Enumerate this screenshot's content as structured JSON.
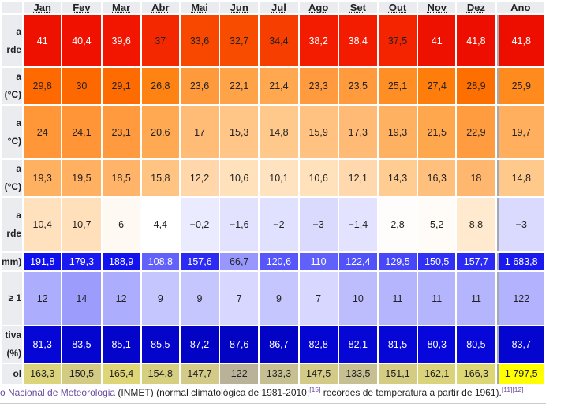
{
  "header": {
    "months": [
      "Jan",
      "Fev",
      "Mar",
      "Abr",
      "Mai",
      "Jun",
      "Jul",
      "Ago",
      "Set",
      "Out",
      "Nov",
      "Dez"
    ],
    "annual": "Ano"
  },
  "rows": [
    {
      "label_lines": [
        "a",
        "rde"
      ],
      "values": [
        "41",
        "40,4",
        "39,6",
        "37",
        "33,6",
        "32,7",
        "34,4",
        "38,2",
        "38,4",
        "37,5",
        "41",
        "41,8"
      ],
      "annual": "41,8",
      "colors": [
        "#ee1100",
        "#f01100",
        "#f21500",
        "#f42800",
        "#f84800",
        "#f84d00",
        "#f63e00",
        "#f31c00",
        "#f31b00",
        "#f42300",
        "#ee1100",
        "#ed0e00"
      ],
      "annual_color": "#ed0e00",
      "text_colors": [
        "#ffffff",
        "#ffffff",
        "#ffffff",
        "#222222",
        "#222222",
        "#222222",
        "#222222",
        "#ffffff",
        "#ffffff",
        "#222222",
        "#ffffff",
        "#ffffff"
      ],
      "annual_text_color": "#ffffff"
    },
    {
      "label_lines": [
        "a",
        "(°C)"
      ],
      "values": [
        "29,8",
        "30",
        "29,1",
        "26,8",
        "23,6",
        "22,1",
        "21,4",
        "23,3",
        "23,5",
        "25,1",
        "27,4",
        "28,9"
      ],
      "annual": "25,9",
      "colors": [
        "#fe6a01",
        "#fe6801",
        "#fe6c01",
        "#ff8312",
        "#ff9a3c",
        "#ffa348",
        "#ffa84f",
        "#ff9b3e",
        "#ff9b3d",
        "#ff8e25",
        "#ff7e0b",
        "#fe6f02"
      ],
      "annual_color": "#ff8a1e",
      "text_colors": [
        "#222222",
        "#222222",
        "#222222",
        "#222222",
        "#222222",
        "#222222",
        "#222222",
        "#222222",
        "#222222",
        "#222222",
        "#222222",
        "#222222"
      ],
      "annual_text_color": "#222222"
    },
    {
      "label_lines": [
        "a",
        "°C)"
      ],
      "values": [
        "24",
        "24,1",
        "23,1",
        "20,6",
        "17",
        "15,3",
        "14,8",
        "15,9",
        "17,3",
        "19,3",
        "21,5",
        "22,9"
      ],
      "annual": "19,7",
      "colors": [
        "#ff9637",
        "#ff9536",
        "#ff9a3e",
        "#ffa953",
        "#ffbc77",
        "#ffc687",
        "#ffc98c",
        "#ffc281",
        "#ffbb75",
        "#ffb162",
        "#ffa74d",
        "#ff9c40"
      ],
      "annual_color": "#ffaf5d",
      "text_colors": [
        "#222222",
        "#222222",
        "#222222",
        "#222222",
        "#222222",
        "#222222",
        "#222222",
        "#222222",
        "#222222",
        "#222222",
        "#222222",
        "#222222"
      ],
      "annual_text_color": "#222222"
    },
    {
      "label_lines": [
        "a",
        "(°C)"
      ],
      "values": [
        "19,3",
        "19,5",
        "18,5",
        "15,8",
        "12,2",
        "10,6",
        "10,1",
        "10,6",
        "12,1",
        "14,3",
        "16,3",
        "18"
      ],
      "annual": "14,8",
      "colors": [
        "#ffb162",
        "#ffb061",
        "#ffb46a",
        "#ffc382",
        "#ffd7ab",
        "#ffe1bc",
        "#ffe3c1",
        "#ffe1bc",
        "#ffd8ad",
        "#ffcc92",
        "#ffc07d",
        "#ffb66e"
      ],
      "annual_color": "#ffc98c",
      "text_colors": [
        "#222222",
        "#222222",
        "#222222",
        "#222222",
        "#222222",
        "#222222",
        "#222222",
        "#222222",
        "#222222",
        "#222222",
        "#222222",
        "#222222"
      ],
      "annual_text_color": "#222222"
    },
    {
      "label_lines": [
        "a",
        "rde"
      ],
      "values": [
        "10,4",
        "10,7",
        "6",
        "4,4",
        "−0,2",
        "−1,6",
        "−2",
        "−3",
        "−1,4",
        "2,8",
        "5,2",
        "8,8"
      ],
      "annual": "−3",
      "colors": [
        "#ffe1bd",
        "#ffe0bb",
        "#fff9f3",
        "#ffffff",
        "#ebebff",
        "#e2e2ff",
        "#e0e0ff",
        "#dadaff",
        "#e3e3ff",
        "#fffdfb",
        "#fffcf8",
        "#ffe9cf"
      ],
      "annual_color": "#dadaff",
      "text_colors": [
        "#222222",
        "#222222",
        "#222222",
        "#222222",
        "#222222",
        "#222222",
        "#222222",
        "#222222",
        "#222222",
        "#222222",
        "#222222",
        "#222222"
      ],
      "annual_text_color": "#222222"
    },
    {
      "label_lines": [
        "mm)"
      ],
      "values": [
        "191,8",
        "179,3",
        "188,9",
        "108,8",
        "157,6",
        "66,7",
        "120,6",
        "110",
        "122,4",
        "129,5",
        "150,5",
        "157,7"
      ],
      "annual": "1 683,8",
      "colors": [
        "#1010ee",
        "#1a1af0",
        "#1212ee",
        "#6262fb",
        "#2b2bf3",
        "#9797fd",
        "#5656fa",
        "#6060fb",
        "#5252f9",
        "#4848f8",
        "#3131f4",
        "#2b2bf3"
      ],
      "annual_color": "#1a1aef",
      "text_colors": [
        "#ffffff",
        "#ffffff",
        "#ffffff",
        "#ffffff",
        "#ffffff",
        "#222222",
        "#ffffff",
        "#ffffff",
        "#ffffff",
        "#ffffff",
        "#ffffff",
        "#ffffff"
      ],
      "annual_text_color": "#ffffff"
    },
    {
      "label_lines": [
        "≥ 1"
      ],
      "values": [
        "12",
        "14",
        "12",
        "9",
        "9",
        "7",
        "9",
        "7",
        "10",
        "11",
        "11",
        "11"
      ],
      "annual": "122",
      "colors": [
        "#adadfe",
        "#9c9cfd",
        "#adadfe",
        "#c6c6ff",
        "#c6c6ff",
        "#d7d7ff",
        "#c6c6ff",
        "#d7d7ff",
        "#bdbdfe",
        "#b5b5fe",
        "#b5b5fe",
        "#b5b5fe"
      ],
      "annual_color": "#b2b2fe",
      "text_colors": [
        "#222222",
        "#222222",
        "#222222",
        "#222222",
        "#222222",
        "#222222",
        "#222222",
        "#222222",
        "#222222",
        "#222222",
        "#222222",
        "#222222"
      ],
      "annual_text_color": "#222222"
    },
    {
      "label_lines": [
        "tiva",
        "(%)"
      ],
      "values": [
        "81,3",
        "83,5",
        "85,1",
        "85,5",
        "87,2",
        "87,6",
        "86,7",
        "82,8",
        "82,1",
        "81,5",
        "80,3",
        "80,5"
      ],
      "annual": "83,7",
      "colors": [
        "#0606d7",
        "#0505d0",
        "#0404cb",
        "#0404ca",
        "#0303c5",
        "#0303c4",
        "#0303c6",
        "#0505d3",
        "#0606d5",
        "#0606d7",
        "#0707db",
        "#0707da"
      ],
      "annual_color": "#0505d0",
      "text_colors": [
        "#ffffff",
        "#ffffff",
        "#ffffff",
        "#ffffff",
        "#ffffff",
        "#ffffff",
        "#ffffff",
        "#ffffff",
        "#ffffff",
        "#ffffff",
        "#ffffff",
        "#ffffff"
      ],
      "annual_text_color": "#ffffff"
    },
    {
      "label_lines": [
        "ol"
      ],
      "values": [
        "163,3",
        "150,5",
        "165,4",
        "154,8",
        "147,7",
        "122",
        "133,3",
        "147,5",
        "133,5",
        "151,1",
        "162,1",
        "166,3"
      ],
      "annual": "1 797,5",
      "colors": [
        "#dbd47a",
        "#d3cb83",
        "#ddd576",
        "#d6cf80",
        "#d2ca86",
        "#b9b198",
        "#c6bf91",
        "#d2ca86",
        "#c6bf91",
        "#d4cc82",
        "#dad37b",
        "#ddd675"
      ],
      "annual_color": "#ffff00",
      "text_colors": [
        "#222222",
        "#222222",
        "#222222",
        "#222222",
        "#222222",
        "#222222",
        "#222222",
        "#222222",
        "#222222",
        "#222222",
        "#222222",
        "#222222"
      ],
      "annual_text_color": "#222222"
    }
  ],
  "source": {
    "prefix": "o Nacional de Meteorologia",
    "middle": " (INMET) (normal climatológica de 1981-2010;",
    "ref1": "[15]",
    "suffix": " recordes de temperatura a partir de 1961).",
    "ref2": "[11][12]"
  }
}
